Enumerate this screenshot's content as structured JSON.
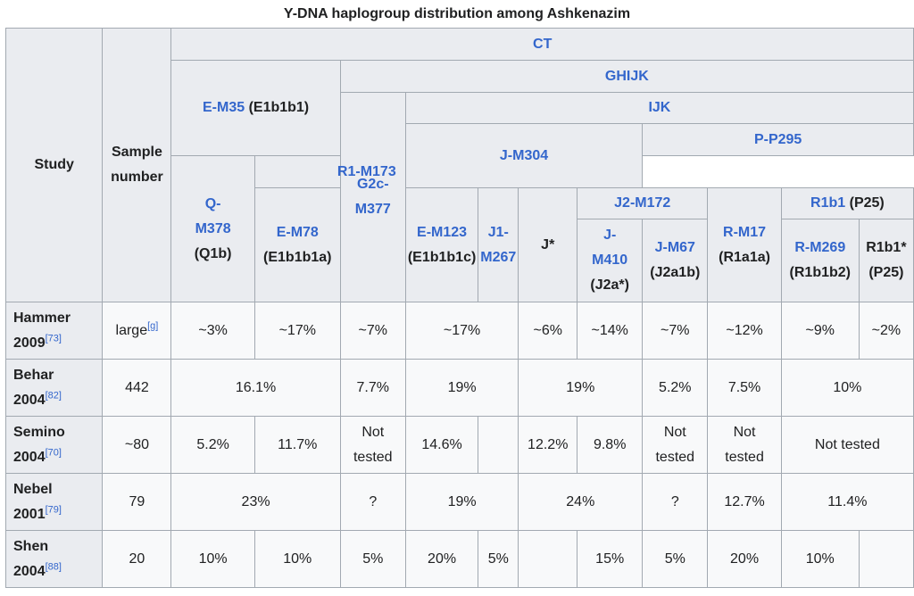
{
  "caption": "Y-DNA haplogroup distribution among Ashkenazim",
  "headers": {
    "study": "Study",
    "sample_number_line1": "Sample",
    "sample_number_line2": "number",
    "ct": "CT",
    "ghijk": "GHIJK",
    "e_m35": "E-M35",
    "e_m35_note": "(E1b1b1)",
    "ijk": "IJK",
    "g2c_m377_line1": "G2c-",
    "g2c_m377_line2": "M377",
    "j_m304": "J-M304",
    "p_p295": "P-P295",
    "r1_m173": "R1-M173",
    "e_m78": "E-M78",
    "e_m78_note": "(E1b1b1a)",
    "e_m123": "E-M123",
    "e_m123_note": "(E1b1b1c)",
    "j1_m267_line1": "J1-",
    "j1_m267_line2": "M267",
    "j_star": "J*",
    "j2_m172": "J2-M172",
    "q_m378_line1": "Q-",
    "q_m378_line2": "M378",
    "q_m378_note": "(Q1b)",
    "r_m17": "R-M17",
    "r_m17_note": "(R1a1a)",
    "r1b1": "R1b1",
    "r1b1_note": "(P25)",
    "j_m410_line1": "J-",
    "j_m410_line2": "M410",
    "j_m410_note": "(J2a*)",
    "j_m67": "J-M67",
    "j_m67_note": "(J2a1b)",
    "r_m269": "R-M269",
    "r_m269_note": "(R1b1b2)",
    "r1b1_star": "R1b1*",
    "r1b1_star_note": "(P25)"
  },
  "rows": [
    {
      "study_name": "Hammer",
      "study_year": "2009",
      "ref": "[73]",
      "sample": "large",
      "sample_ref": "[g]",
      "e_m78": "~3%",
      "e_m123": "~17%",
      "g2c": "~7%",
      "j1_jstar": "~17%",
      "j_m410": "~6%",
      "j_m67": "~14%",
      "q": "~7%",
      "r_m17": "~12%",
      "r_m269": "~9%",
      "r1b1_star": "~2%"
    },
    {
      "study_name": "Behar",
      "study_year": "2004",
      "ref": "[82]",
      "sample": "442",
      "e_m35": "16.1%",
      "g2c": "7.7%",
      "j1_jstar": "19%",
      "j2": "19%",
      "q": "5.2%",
      "r_m17": "7.5%",
      "r1b1": "10%"
    },
    {
      "study_name": "Semino",
      "study_year": "2004",
      "ref": "[70]",
      "sample": "~80",
      "e_m78": "5.2%",
      "e_m123": "11.7%",
      "g2c_line1": "Not",
      "g2c_line2": "tested",
      "j1": "14.6%",
      "j_star": "",
      "j_m410": "12.2%",
      "j_m67": "9.8%",
      "q_line1": "Not",
      "q_line2": "tested",
      "r_m17_line1": "Not",
      "r_m17_line2": "tested",
      "r1b1": "Not tested"
    },
    {
      "study_name": "Nebel",
      "study_year": "2001",
      "ref": "[79]",
      "sample": "79",
      "e_m35": "23%",
      "g2c": "?",
      "j1_jstar": "19%",
      "j2": "24%",
      "q": "?",
      "r_m17": "12.7%",
      "r1b1": "11.4%"
    },
    {
      "study_name": "Shen",
      "study_year": "2004",
      "ref": "[88]",
      "sample": "20",
      "e_m78": "10%",
      "e_m123": "10%",
      "g2c": "5%",
      "j1": "20%",
      "j_star": "5%",
      "j_m410": "",
      "j_m67": "15%",
      "q": "5%",
      "r_m17": "20%",
      "r_m269": "10%",
      "r1b1_star": ""
    }
  ]
}
